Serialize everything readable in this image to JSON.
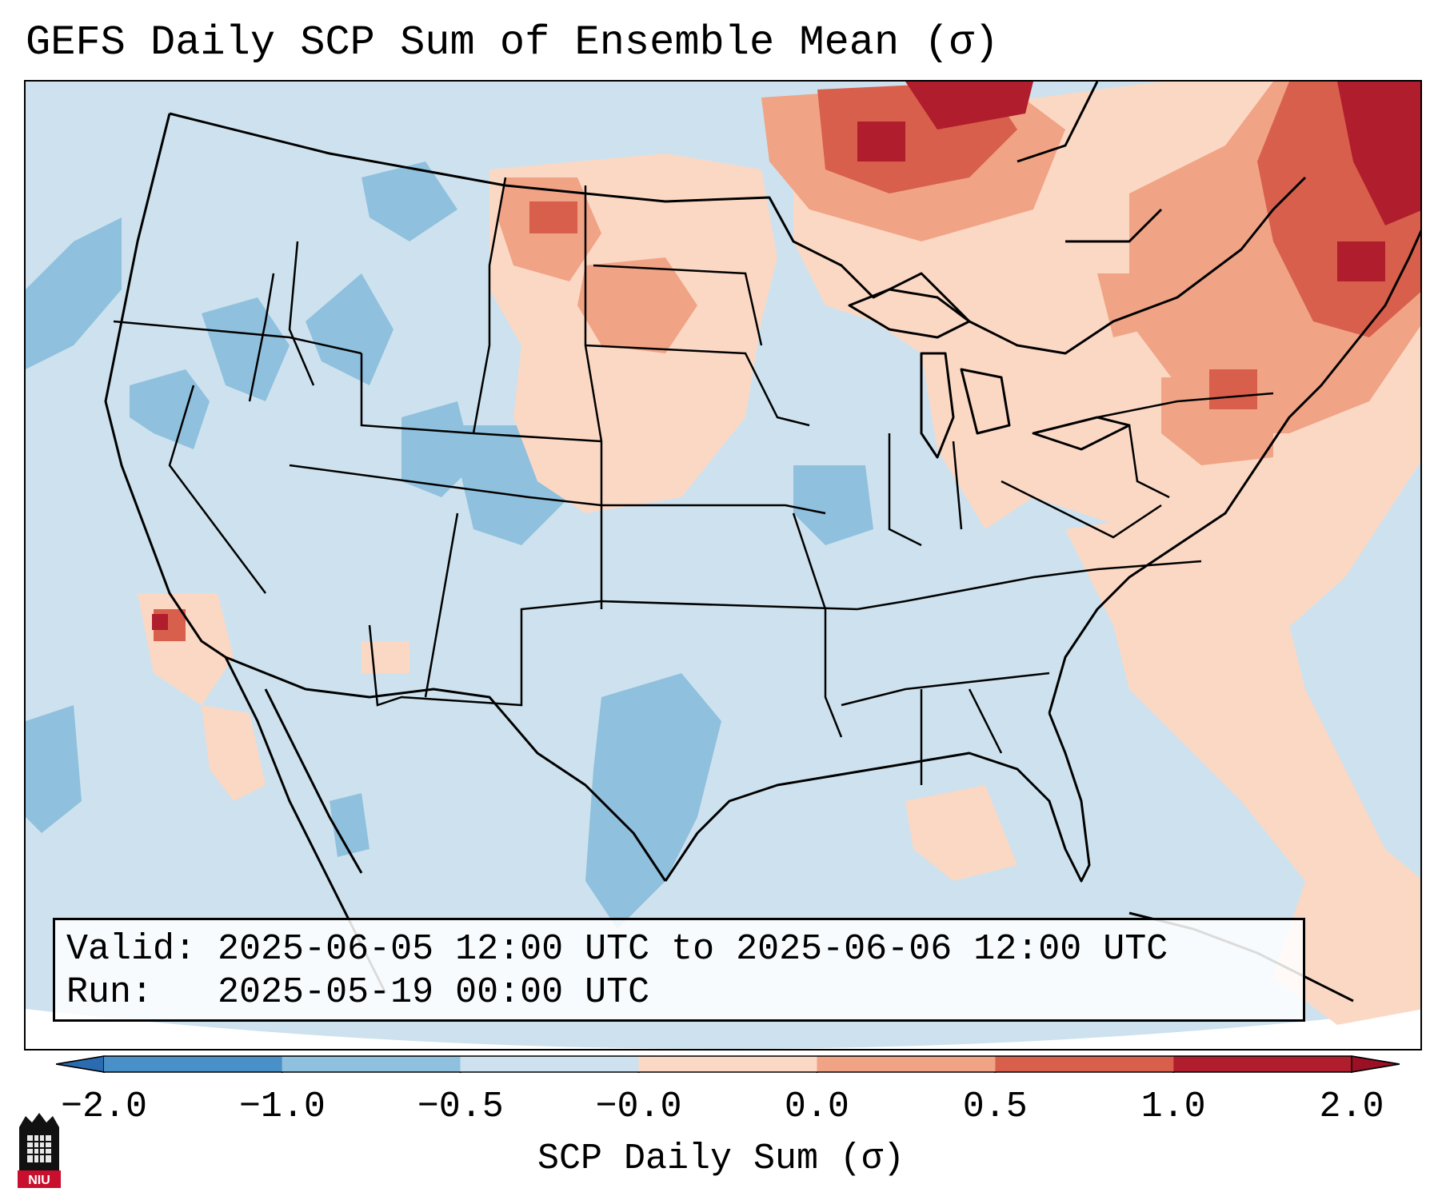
{
  "title": "GEFS Daily SCP Sum of Ensemble Mean (σ)",
  "info": {
    "valid_label": "Valid:",
    "valid_value": "2025-06-05 12:00 UTC to 2025-06-06 12:00 UTC",
    "run_label": "Run:",
    "run_value": "2025-05-19 00:00 UTC"
  },
  "colorbar": {
    "label": "SCP Daily Sum (σ)",
    "ticks": [
      "−2.0",
      "−1.0",
      "−0.5",
      "−0.0",
      "0.0",
      "0.5",
      "1.0",
      "2.0"
    ],
    "colors": [
      "#4a90c8",
      "#8fc0dd",
      "#cde2ee",
      "#fbd8c4",
      "#f0a385",
      "#d85f4c",
      "#b01d2c"
    ],
    "extend_low_color": "#2b6cb0",
    "extend_high_color": "#9b1025"
  },
  "logo": {
    "text": "NIU",
    "icon": "niu-tower-icon"
  },
  "map": {
    "projection": "lambert-conformal",
    "region": "CONUS",
    "background_color": "#cde2ee",
    "anomaly_regions": [
      {
        "name": "Northeast / New England",
        "category": "1.0 to 2.0"
      },
      {
        "name": "Southern Manitoba / Ontario",
        "category": "1.0 to 2.0"
      },
      {
        "name": "Northern Plains",
        "category": "0.5 to 1.0"
      },
      {
        "name": "Pennsylvania / Mid-Atlantic",
        "category": "0.5 to 1.0"
      },
      {
        "name": "Texas / New Mexico",
        "category": "−1.0 to −0.5"
      },
      {
        "name": "Colorado / Utah",
        "category": "−1.0 to −0.5"
      },
      {
        "name": "Pacific Northwest",
        "category": "−1.0 to −0.5"
      }
    ]
  }
}
